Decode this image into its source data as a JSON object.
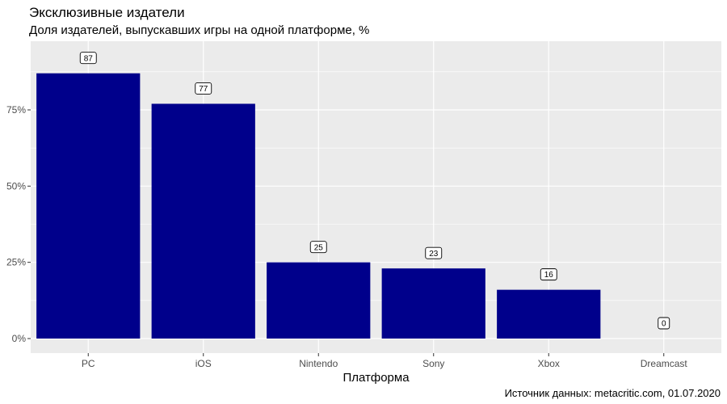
{
  "header": {
    "title": "Эксклюзивные издатели",
    "subtitle": "Доля издателей, выпускавших игры на одной платформе, %"
  },
  "caption": "Источник данных: metacritic.com, 01.07.2020",
  "chart_data": {
    "type": "bar",
    "title": "Эксклюзивные издатели",
    "subtitle": "Доля издателей, выпускавших игры на одной платформе, %",
    "xlabel": "Платформа",
    "ylabel": "",
    "categories": [
      "PC",
      "iOS",
      "Nintendo",
      "Sony",
      "Xbox",
      "Dreamcast"
    ],
    "values": [
      87,
      77,
      25,
      23,
      16,
      0
    ],
    "data_labels": [
      "87",
      "77",
      "25",
      "23",
      "16",
      "0"
    ],
    "y_ticks": [
      0,
      25,
      50,
      75
    ],
    "y_tick_labels": [
      "0%",
      "25%",
      "50%",
      "75%"
    ],
    "ylim": [
      0,
      91
    ],
    "grid": true,
    "legend": "none",
    "colors": {
      "bar": "#00008B",
      "panel": "#EBEBEB",
      "grid": "#FFFFFF"
    }
  }
}
